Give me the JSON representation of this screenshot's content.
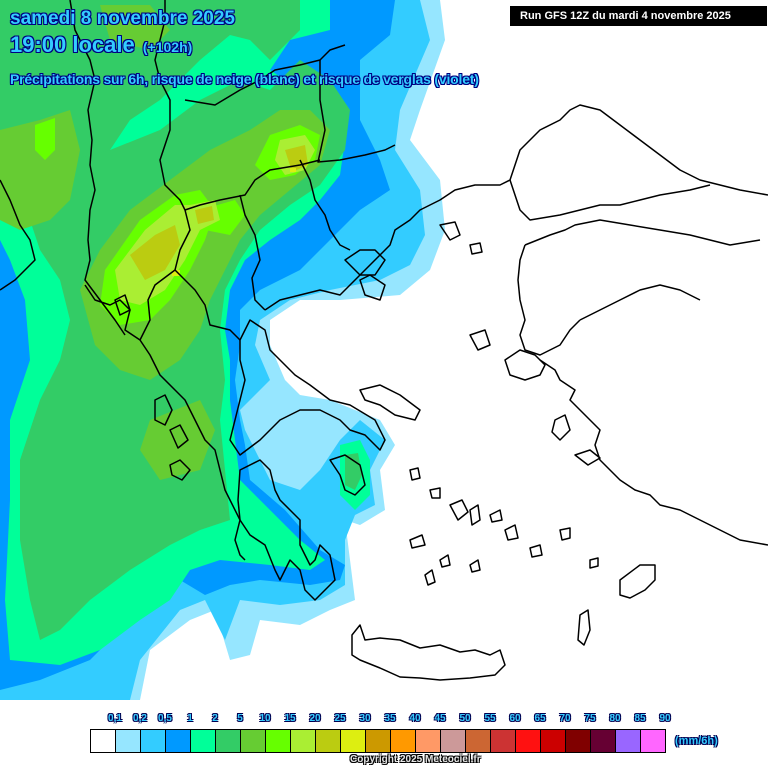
{
  "header": {
    "date": "samedi 8 novembre 2025",
    "time": "19:00 locale",
    "lead_time": "(+102h)",
    "subtitle": "Précipitations sur 6h, risque de neige (blanc) et risque de verglas (violet)",
    "run_info": "Run GFS 12Z du mardi 4 novembre 2025"
  },
  "map": {
    "region": "Greece / Balkans / Aegean",
    "background_color": "#ffffff",
    "border_color": "#000000"
  },
  "legend": {
    "unit": "(mm/6h)",
    "labels": [
      "0,1",
      "0,2",
      "0,5",
      "1",
      "2",
      "5",
      "10",
      "15",
      "20",
      "25",
      "30",
      "35",
      "40",
      "45",
      "50",
      "55",
      "60",
      "65",
      "70",
      "75",
      "80",
      "85",
      "90"
    ],
    "colors": [
      "#ffffff",
      "#96e6ff",
      "#33ccff",
      "#0099ff",
      "#00ff99",
      "#33cc66",
      "#66cc33",
      "#66ff00",
      "#aaee33",
      "#bbcc11",
      "#ddee11",
      "#cc9900",
      "#ff9900",
      "#ff9966",
      "#cc9999",
      "#cc6633",
      "#cc3333",
      "#ff1111",
      "#cc0000",
      "#800000",
      "#660033",
      "#9966ff",
      "#ff66ff"
    ]
  },
  "footer": {
    "copyright": "Copyright 2025 Meteociel.fr"
  },
  "chart_data": {
    "type": "heatmap",
    "title": "Précipitations sur 6h, risque de neige (blanc) et risque de verglas (violet)",
    "subtitle": "samedi 8 novembre 2025 19:00 locale (+102h) — Run GFS 12Z du mardi 4 novembre 2025",
    "colorbar": {
      "unit": "mm/6h",
      "thresholds": [
        0.1,
        0.2,
        0.5,
        1,
        2,
        5,
        10,
        15,
        20,
        25,
        30,
        35,
        40,
        45,
        50,
        55,
        60,
        65,
        70,
        75,
        80,
        85,
        90
      ]
    },
    "observations": {
      "western_balkans_albania": "15-25 mm/6h maxima (yellow-green cores)",
      "north_macedonia_bulgaria": "15-25 mm/6h core",
      "ionian_sea_western_greece": "5-10 mm/6h",
      "attica_saronic": "2-5 mm/6h local",
      "aegean_turkey_crete": "dry (< 0.1 mm)"
    }
  }
}
